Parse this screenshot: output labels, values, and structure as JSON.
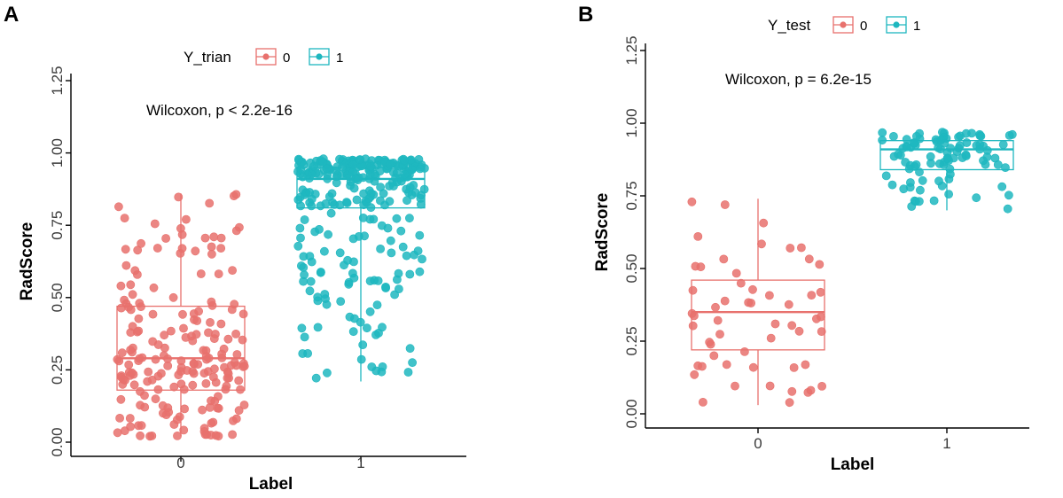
{
  "chart_data": [
    {
      "type": "box",
      "panel_label": "A",
      "title": "",
      "legend_title": "Y_trian",
      "legend_position": "top",
      "legend_entries": [
        "0",
        "1"
      ],
      "xlabel": "Label",
      "ylabel": "RadScore",
      "categories": [
        "0",
        "1"
      ],
      "ylim": [
        0,
        1.25
      ],
      "yticks": [
        "0.00",
        "0.25",
        "0.50",
        "0.75",
        "1.00",
        "1.25"
      ],
      "annotation": "Wilcoxon, p < 2.2e-16",
      "colors": [
        "#e8716d",
        "#1eb7bf"
      ],
      "series": [
        {
          "name": "0",
          "whisker_low": 0.02,
          "q1": 0.18,
          "median": 0.29,
          "q3": 0.47,
          "whisker_high": 0.86,
          "n_points": 200
        },
        {
          "name": "1",
          "whisker_low": 0.21,
          "q1": 0.81,
          "median": 0.91,
          "q3": 0.95,
          "whisker_high": 0.98,
          "n_points": 290
        }
      ]
    },
    {
      "type": "box",
      "panel_label": "B",
      "title": "",
      "legend_title": "Y_test",
      "legend_position": "top",
      "legend_entries": [
        "0",
        "1"
      ],
      "xlabel": "Label",
      "ylabel": "RadScore",
      "categories": [
        "0",
        "1"
      ],
      "ylim": [
        0,
        1.25
      ],
      "yticks": [
        "0.00",
        "0.25",
        "0.50",
        "0.75",
        "1.00",
        "1.25"
      ],
      "annotation": "Wilcoxon, p = 6.2e-15",
      "colors": [
        "#e8716d",
        "#1eb7bf"
      ],
      "series": [
        {
          "name": "0",
          "whisker_low": 0.03,
          "q1": 0.22,
          "median": 0.35,
          "q3": 0.46,
          "whisker_high": 0.74,
          "n_points": 55
        },
        {
          "name": "1",
          "whisker_low": 0.7,
          "q1": 0.84,
          "median": 0.91,
          "q3": 0.94,
          "whisker_high": 0.97,
          "n_points": 95
        }
      ]
    }
  ]
}
